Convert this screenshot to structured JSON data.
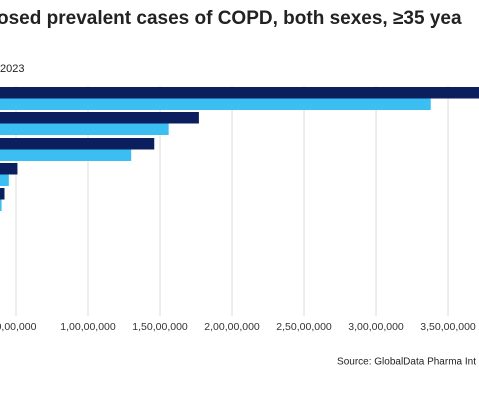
{
  "chart_data": {
    "type": "bar",
    "orientation": "horizontal",
    "title": "osed prevalent cases of COPD, both sexes, ≥35 yea",
    "subtitle": "2023",
    "source": "Source: GlobalData Pharma Int",
    "categories": [
      null,
      null,
      null,
      null,
      null
    ],
    "series": [
      {
        "color": "#0b1f5e",
        "values": [
          37500000,
          17700000,
          14600000,
          5100000,
          4200000
        ]
      },
      {
        "color": "#3bbef2",
        "values": [
          33800000,
          15600000,
          13000000,
          4500000,
          4000000
        ]
      }
    ],
    "xlim": [
      0,
      37150000
    ],
    "xticks": [
      {
        "value": 5000000,
        "label": "0,00,000"
      },
      {
        "value": 10000000,
        "label": "1,00,00,000"
      },
      {
        "value": 15000000,
        "label": "1,50,00,000"
      },
      {
        "value": 20000000,
        "label": "2,00,00,000"
      },
      {
        "value": 25000000,
        "label": "2,50,00,000"
      },
      {
        "value": 30000000,
        "label": "3,00,00,000"
      },
      {
        "value": 35000000,
        "label": "3,50,00,000"
      }
    ],
    "grid": true
  }
}
